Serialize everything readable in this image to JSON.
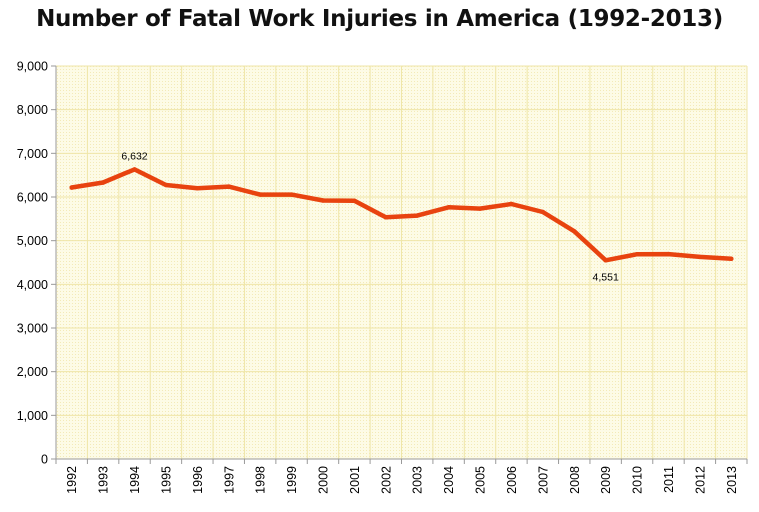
{
  "chart_data": {
    "type": "line",
    "title": "Number of Fatal Work Injuries in America (1992-2013)",
    "xlabel": "",
    "ylabel": "",
    "categories": [
      "1992",
      "1993",
      "1994",
      "1995",
      "1996",
      "1997",
      "1998",
      "1999",
      "2000",
      "2001",
      "2002",
      "2003",
      "2004",
      "2005",
      "2006",
      "2007",
      "2008",
      "2009",
      "2010",
      "2011",
      "2012",
      "2013"
    ],
    "series": [
      {
        "values": [
          6217,
          6331,
          6632,
          6275,
          6202,
          6238,
          6055,
          6054,
          5920,
          5915,
          5534,
          5575,
          5764,
          5734,
          5840,
          5657,
          5214,
          4551,
          4690,
          4693,
          4628,
          4585
        ]
      }
    ],
    "ylim": [
      0,
      9000
    ],
    "y_ticks": [
      0,
      1000,
      2000,
      3000,
      4000,
      5000,
      6000,
      7000,
      8000,
      9000
    ],
    "y_tick_labels": [
      "0",
      "1,000",
      "2,000",
      "3,000",
      "4,000",
      "5,000",
      "6,000",
      "7,000",
      "8,000",
      "9,000"
    ],
    "annotations": [
      {
        "category": "1994",
        "value": 6632,
        "text": "6,632",
        "position": "above"
      },
      {
        "category": "2009",
        "value": 4551,
        "text": "4,551",
        "position": "below"
      }
    ],
    "grid": true,
    "line_color": "#e8430f",
    "plot_background": "#fdfbe6",
    "grid_color": "#efe6a8"
  }
}
